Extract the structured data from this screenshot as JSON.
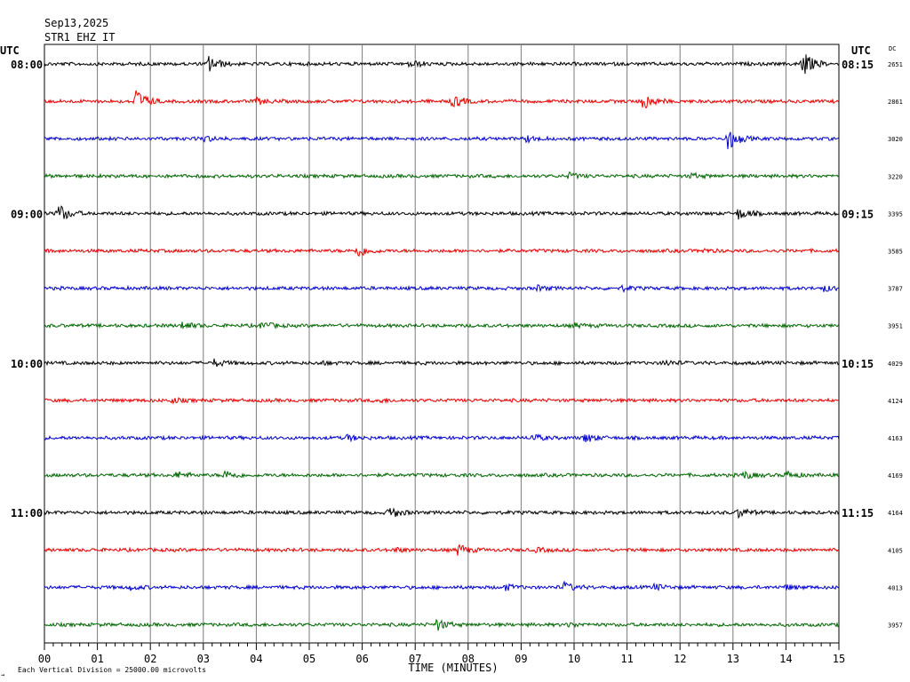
{
  "chart_data": {
    "type": "line",
    "date": "Sep13,2025",
    "station": "STR1 EHZ IT",
    "left_tz": "UTC",
    "right_tz": "UTC",
    "dc_label": "DC",
    "xlabel": "TIME (MINUTES)",
    "x_ticks": [
      "00",
      "01",
      "02",
      "03",
      "04",
      "05",
      "06",
      "07",
      "08",
      "09",
      "10",
      "11",
      "12",
      "13",
      "14",
      "15"
    ],
    "x_range_minutes": [
      0,
      15
    ],
    "grid": true,
    "trace_colors": [
      "#000000",
      "#e60000",
      "#0000cc",
      "#006600"
    ],
    "rows": [
      {
        "left": "08:00",
        "right": "08:15",
        "dc": "2651",
        "color": "#000000",
        "events": [
          {
            "minute": 3.1,
            "amp": 0.45
          },
          {
            "minute": 6.9,
            "amp": 0.2
          },
          {
            "minute": 14.3,
            "amp": 0.75
          }
        ]
      },
      {
        "left": "",
        "right": "",
        "dc": "2861",
        "color": "#e60000",
        "events": [
          {
            "minute": 1.7,
            "amp": 0.75
          },
          {
            "minute": 4.0,
            "amp": 0.15
          },
          {
            "minute": 7.7,
            "amp": 0.35
          },
          {
            "minute": 11.3,
            "amp": 0.45
          }
        ]
      },
      {
        "left": "",
        "right": "",
        "dc": "3020",
        "color": "#0000cc",
        "events": [
          {
            "minute": 3.0,
            "amp": 0.15
          },
          {
            "minute": 9.1,
            "amp": 0.15
          },
          {
            "minute": 12.9,
            "amp": 0.6
          }
        ]
      },
      {
        "left": "",
        "right": "",
        "dc": "3220",
        "color": "#006600",
        "events": [
          {
            "minute": 9.9,
            "amp": 0.15
          },
          {
            "minute": 12.2,
            "amp": 0.12
          }
        ]
      },
      {
        "left": "09:00",
        "right": "09:15",
        "dc": "3395",
        "color": "#000000",
        "events": [
          {
            "minute": 0.25,
            "amp": 0.55
          },
          {
            "minute": 13.1,
            "amp": 0.3
          }
        ]
      },
      {
        "left": "",
        "right": "",
        "dc": "3585",
        "color": "#e60000",
        "events": [
          {
            "minute": 5.9,
            "amp": 0.35
          },
          {
            "minute": 12.4,
            "amp": 0.1
          }
        ]
      },
      {
        "left": "",
        "right": "",
        "dc": "3787",
        "color": "#0000cc",
        "events": [
          {
            "minute": 9.3,
            "amp": 0.12
          },
          {
            "minute": 10.9,
            "amp": 0.12
          },
          {
            "minute": 14.7,
            "amp": 0.15
          }
        ]
      },
      {
        "left": "",
        "right": "",
        "dc": "3951",
        "color": "#006600",
        "events": [
          {
            "minute": 2.6,
            "amp": 0.2
          },
          {
            "minute": 4.1,
            "amp": 0.2
          },
          {
            "minute": 10.0,
            "amp": 0.1
          }
        ]
      },
      {
        "left": "10:00",
        "right": "10:15",
        "dc": "4029",
        "color": "#000000",
        "events": [
          {
            "minute": 3.2,
            "amp": 0.18
          },
          {
            "minute": 5.2,
            "amp": 0.1
          },
          {
            "minute": 11.7,
            "amp": 0.15
          }
        ]
      },
      {
        "left": "",
        "right": "",
        "dc": "4124",
        "color": "#e60000",
        "events": [
          {
            "minute": 2.4,
            "amp": 0.12
          },
          {
            "minute": 6.3,
            "amp": 0.1
          }
        ]
      },
      {
        "left": "",
        "right": "",
        "dc": "4163",
        "color": "#0000cc",
        "events": [
          {
            "minute": 5.7,
            "amp": 0.15
          },
          {
            "minute": 9.2,
            "amp": 0.2
          },
          {
            "minute": 10.2,
            "amp": 0.25
          }
        ]
      },
      {
        "left": "",
        "right": "",
        "dc": "4169",
        "color": "#006600",
        "events": [
          {
            "minute": 2.5,
            "amp": 0.18
          },
          {
            "minute": 3.4,
            "amp": 0.25
          },
          {
            "minute": 13.2,
            "amp": 0.2
          },
          {
            "minute": 14.0,
            "amp": 0.18
          }
        ]
      },
      {
        "left": "11:00",
        "right": "11:15",
        "dc": "4164",
        "color": "#000000",
        "events": [
          {
            "minute": 6.5,
            "amp": 0.35
          },
          {
            "minute": 13.1,
            "amp": 0.25
          }
        ]
      },
      {
        "left": "",
        "right": "",
        "dc": "4105",
        "color": "#e60000",
        "events": [
          {
            "minute": 6.6,
            "amp": 0.12
          },
          {
            "minute": 7.8,
            "amp": 0.3
          },
          {
            "minute": 9.3,
            "amp": 0.1
          }
        ]
      },
      {
        "left": "",
        "right": "",
        "dc": "4013",
        "color": "#0000cc",
        "events": [
          {
            "minute": 1.6,
            "amp": 0.12
          },
          {
            "minute": 8.7,
            "amp": 0.15
          },
          {
            "minute": 9.8,
            "amp": 0.25
          },
          {
            "minute": 11.5,
            "amp": 0.15
          },
          {
            "minute": 14.0,
            "amp": 0.12
          }
        ]
      },
      {
        "left": "",
        "right": "",
        "dc": "3957",
        "color": "#006600",
        "events": [
          {
            "minute": 7.4,
            "amp": 0.3
          },
          {
            "minute": 9.9,
            "amp": 0.1
          }
        ]
      }
    ]
  },
  "footer": {
    "scale_note": "Each Vertical Division = 25000.00 microvolts",
    "corner_mark": "→"
  }
}
